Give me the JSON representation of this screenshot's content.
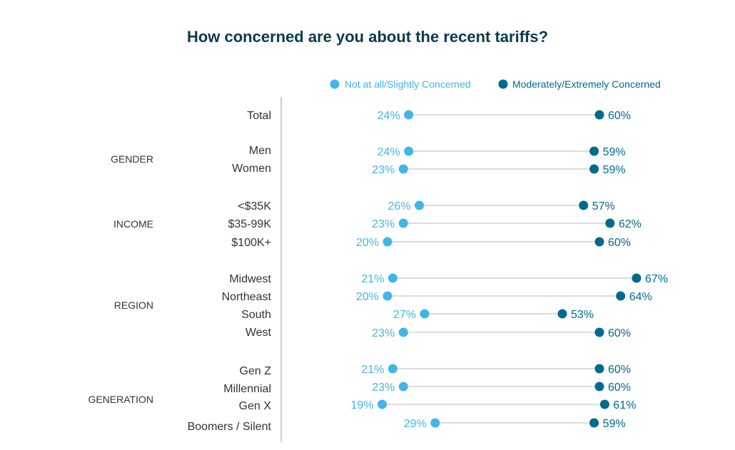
{
  "colors": {
    "title": "#0b3b4a",
    "low": "#41b6e6",
    "high": "#006a8e",
    "line": "#c8c8c8",
    "divider": "#9a9a9a",
    "label": "#333333"
  },
  "chart_data": {
    "type": "dumbbell",
    "title": "How concerned are you about the recent tariffs?",
    "legend": [
      {
        "name": "Not at all/Slightly Concerned",
        "key": "low"
      },
      {
        "name": "Moderately/Extremely Concerned",
        "key": "high"
      }
    ],
    "legend_position": "top-right",
    "value_unit": "%",
    "groups": [
      {
        "label": "",
        "rows": [
          {
            "label": "Total",
            "low": 24,
            "high": 60
          }
        ]
      },
      {
        "label": "GENDER",
        "rows": [
          {
            "label": "Men",
            "low": 24,
            "high": 59
          },
          {
            "label": "Women",
            "low": 23,
            "high": 59
          }
        ]
      },
      {
        "label": "INCOME",
        "rows": [
          {
            "label": "<$35K",
            "low": 26,
            "high": 57
          },
          {
            "label": "$35-99K",
            "low": 23,
            "high": 62
          },
          {
            "label": "$100K+",
            "low": 20,
            "high": 60
          }
        ]
      },
      {
        "label": "REGION",
        "rows": [
          {
            "label": "Midwest",
            "low": 21,
            "high": 67
          },
          {
            "label": "Northeast",
            "low": 20,
            "high": 64
          },
          {
            "label": "South",
            "low": 27,
            "high": 53
          },
          {
            "label": "West",
            "low": 23,
            "high": 60
          }
        ]
      },
      {
        "label": "GENERATION",
        "rows": [
          {
            "label": "Gen Z",
            "low": 21,
            "high": 60
          },
          {
            "label": "Millennial",
            "low": 23,
            "high": 60
          },
          {
            "label": "Gen X",
            "low": 19,
            "high": 61
          },
          {
            "label": "Boomers / Silent",
            "low": 29,
            "high": 59
          }
        ]
      }
    ]
  }
}
